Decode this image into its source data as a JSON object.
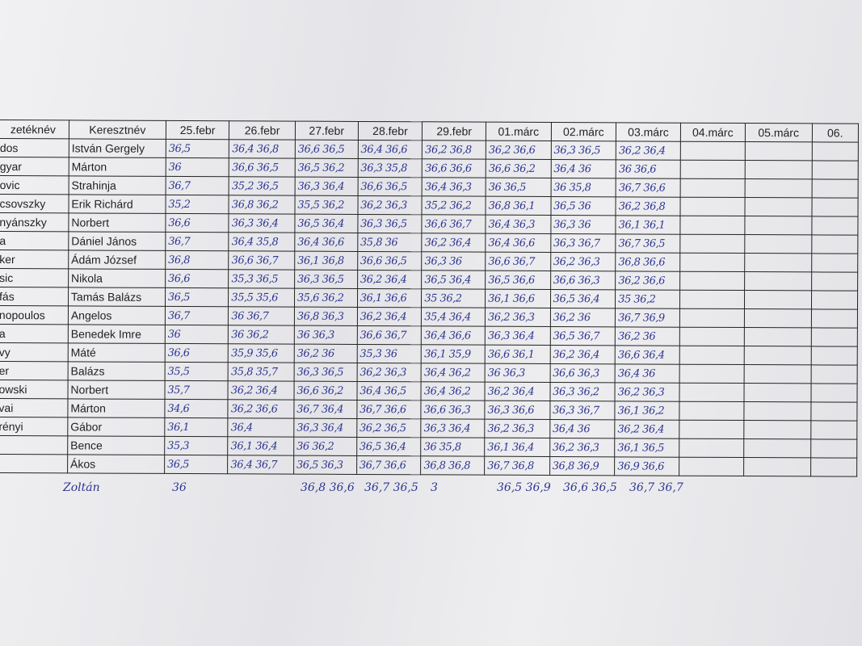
{
  "table": {
    "header": [
      "zetéknév",
      "Keresztnév",
      "25.febr",
      "26.febr",
      "27.febr",
      "28.febr",
      "29.febr",
      "01.márc",
      "02.márc",
      "03.márc",
      "04.márc",
      "05.márc",
      "06."
    ],
    "rows": [
      {
        "last_name": "dos",
        "first_name": "István Gergely",
        "temps": [
          "36,5",
          "36,4 36,8",
          "36,6 36,5",
          "36,4 36,6",
          "36,2 36,8",
          "36,2 36,6",
          "36,3 36,5",
          "36,2 36,4"
        ]
      },
      {
        "last_name": "gyar",
        "first_name": "Márton",
        "temps": [
          "36",
          "36,6 36,5",
          "36,5 36,2",
          "36,3 35,8",
          "36,6 36,6",
          "36,6 36,2",
          "36,4 36",
          "36 36,6"
        ]
      },
      {
        "last_name": "ovic",
        "first_name": "Strahinja",
        "temps": [
          "36,7",
          "35,2 36,5",
          "36,3 36,4",
          "36,6 36,5",
          "36,4 36,3",
          "36 36,5",
          "36 35,8",
          "36,7 36,6"
        ]
      },
      {
        "last_name": "csovszky",
        "first_name": "Erik Richárd",
        "temps": [
          "35,2",
          "36,8 36,2",
          "35,5 36,2",
          "36,2 36,3",
          "35,2 36,2",
          "36,8 36,1",
          "36,5 36",
          "36,2 36,8"
        ]
      },
      {
        "last_name": "nyánszky",
        "first_name": "Norbert",
        "temps": [
          "36,6",
          "36,3 36,4",
          "36,5 36,4",
          "36,3 36,5",
          "36,6 36,7",
          "36,4 36,3",
          "36,3 36",
          "36,1 36,1"
        ]
      },
      {
        "last_name": "a",
        "first_name": "Dániel János",
        "temps": [
          "36,7",
          "36,4 35,8",
          "36,4 36,6",
          "35,8 36",
          "36,2 36,4",
          "36,4 36,6",
          "36,3 36,7",
          "36,7 36,5"
        ]
      },
      {
        "last_name": "ker",
        "first_name": "Ádám József",
        "temps": [
          "36,8",
          "36,6 36,7",
          "36,1 36,8",
          "36,6 36,5",
          "36,3 36",
          "36,6 36,7",
          "36,2 36,3",
          "36,8 36,6"
        ]
      },
      {
        "last_name": "sic",
        "first_name": "Nikola",
        "temps": [
          "36,6",
          "35,3 36,5",
          "36,3 36,5",
          "36,2 36,4",
          "36,5 36,4",
          "36,5 36,6",
          "36,6 36,3",
          "36,2 36,6"
        ]
      },
      {
        "last_name": "fás",
        "first_name": "Tamás Balázs",
        "temps": [
          "36,5",
          "35,5 35,6",
          "35,6 36,2",
          "36,1 36,6",
          "35 36,2",
          "36,1 36,6",
          "36,5 36,4",
          "35 36,2"
        ]
      },
      {
        "last_name": "nopoulos",
        "first_name": "Angelos",
        "temps": [
          "36,7",
          "36 36,7",
          "36,8 36,3",
          "36,2 36,4",
          "35,4 36,4",
          "36,2 36,3",
          "36,2 36",
          "36,7 36,9"
        ]
      },
      {
        "last_name": "a",
        "first_name": "Benedek Imre",
        "temps": [
          "36",
          "36 36,2",
          "36 36,3",
          "36,6 36,7",
          "36,4 36,6",
          "36,3 36,4",
          "36,5 36,7",
          "36,2 36"
        ]
      },
      {
        "last_name": "vy",
        "first_name": "Máté",
        "temps": [
          "36,6",
          "35,9 35,6",
          "36,2 36",
          "35,3 36",
          "36,1 35,9",
          "36,6 36,1",
          "36,2 36,4",
          "36,6 36,4"
        ]
      },
      {
        "last_name": "er",
        "first_name": "Balázs",
        "temps": [
          "35,5",
          "35,8 35,7",
          "36,3 36,5",
          "36,2 36,3",
          "36,4 36,2",
          "36 36,3",
          "36,6 36,3",
          "36,4 36"
        ]
      },
      {
        "last_name": "owski",
        "first_name": "Norbert",
        "temps": [
          "35,7",
          "36,2 36,4",
          "36,6 36,2",
          "36,4 36,5",
          "36,4 36,2",
          "36,2 36,4",
          "36,3 36,2",
          "36,2 36,3"
        ]
      },
      {
        "last_name": "vai",
        "first_name": "Márton",
        "temps": [
          "34,6",
          "36,2 36,6",
          "36,7 36,4",
          "36,7 36,6",
          "36,6 36,3",
          "36,3 36,6",
          "36,3 36,7",
          "36,1 36,2"
        ]
      },
      {
        "last_name": "rényi",
        "first_name": "Gábor",
        "temps": [
          "36,1",
          "36,4",
          "36,3 36,4",
          "36,2 36,5",
          "36,3 36,4",
          "36,2 36,3",
          "36,4 36",
          "36,2 36,4"
        ]
      },
      {
        "last_name": null,
        "first_name": "Bence",
        "temps": [
          "35,3",
          "36,1 36,4",
          "36 36,2",
          "36,5 36,4",
          "36 35,8",
          "36,1 36,4",
          "36,2 36,3",
          "36,1 36,5"
        ]
      },
      {
        "last_name": null,
        "first_name": "Ákos",
        "temps": [
          "36,5",
          "36,4 36,7",
          "36,5 36,3",
          "36,7 36,6",
          "36,8 36,8",
          "36,7 36,8",
          "36,8 36,9",
          "36,9 36,6"
        ]
      }
    ]
  },
  "extra_row": {
    "name": "Zoltán",
    "temps": [
      "36",
      null,
      "36,8 36,6",
      "36,7 36,5",
      "3",
      "36,5 36,9",
      "36,6 36,5",
      "36,7 36,7"
    ]
  }
}
